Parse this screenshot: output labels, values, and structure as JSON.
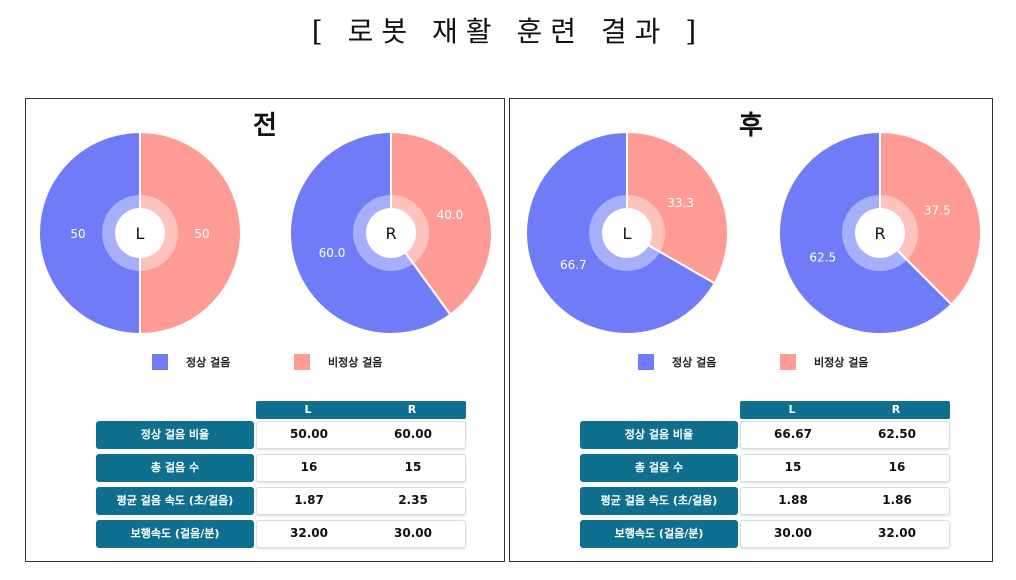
{
  "page_title": "[ 로봇 재활 훈련 결과 ]",
  "colors": {
    "normal": "#6f7bf7",
    "abnormal": "#ff9b95",
    "header": "#0f6f8f"
  },
  "legend": {
    "normal": "정상 걸음",
    "abnormal": "비정상 걸음"
  },
  "table_headers": {
    "left": "L",
    "right": "R"
  },
  "panels": [
    {
      "title": "전",
      "rows": [
        {
          "label": "정상 걸음 비율",
          "l": "50.00",
          "r": "60.00"
        },
        {
          "label": "총 걸음 수",
          "l": "16",
          "r": "15"
        },
        {
          "label": "평균 걸음 속도 (초/걸음)",
          "l": "1.87",
          "r": "2.35"
        },
        {
          "label": "보행속도 (걸음/분)",
          "l": "32.00",
          "r": "30.00"
        }
      ]
    },
    {
      "title": "후",
      "rows": [
        {
          "label": "정상 걸음 비율",
          "l": "66.67",
          "r": "62.50"
        },
        {
          "label": "총 걸음 수",
          "l": "15",
          "r": "16"
        },
        {
          "label": "평균 걸음 속도 (초/걸음)",
          "l": "1.88",
          "r": "1.86"
        },
        {
          "label": "보행속도 (걸음/분)",
          "l": "30.00",
          "r": "32.00"
        }
      ]
    }
  ],
  "chart_data": [
    {
      "type": "pie",
      "center_label": "L",
      "panel": "전",
      "categories": [
        "정상 걸음",
        "비정상 걸음"
      ],
      "values": [
        50,
        50
      ],
      "labels": [
        "50",
        "50"
      ]
    },
    {
      "type": "pie",
      "center_label": "R",
      "panel": "전",
      "categories": [
        "정상 걸음",
        "비정상 걸음"
      ],
      "values": [
        60.0,
        40.0
      ],
      "labels": [
        "60.0",
        "40.0"
      ]
    },
    {
      "type": "pie",
      "center_label": "L",
      "panel": "후",
      "categories": [
        "정상 걸음",
        "비정상 걸음"
      ],
      "values": [
        66.7,
        33.3
      ],
      "labels": [
        "66.7",
        "33.3"
      ]
    },
    {
      "type": "pie",
      "center_label": "R",
      "panel": "후",
      "categories": [
        "정상 걸음",
        "비정상 걸음"
      ],
      "values": [
        62.5,
        37.5
      ],
      "labels": [
        "62.5",
        "37.5"
      ]
    }
  ]
}
